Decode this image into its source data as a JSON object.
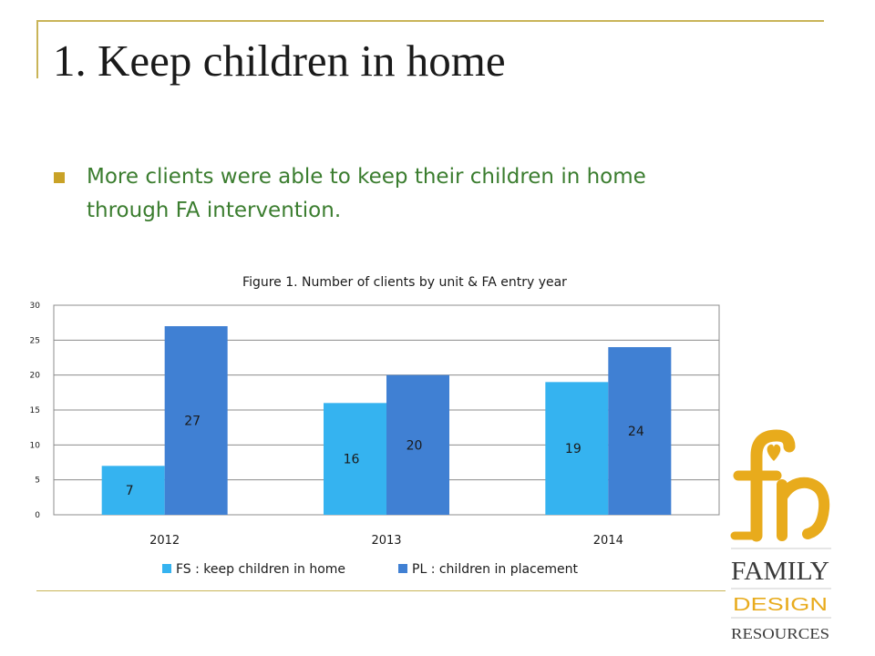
{
  "slide": {
    "title": "1. Keep children in home",
    "bullet": "More clients were able to keep their children in home through FA intervention."
  },
  "chart_data": {
    "type": "bar",
    "title": "Figure 1. Number of clients by unit &  FA entry year",
    "categories": [
      "2012",
      "2013",
      "2014"
    ],
    "series": [
      {
        "name": "FS : keep children in home",
        "values": [
          7,
          16,
          19
        ],
        "color": "#35b3f0"
      },
      {
        "name": "PL : children in placement",
        "values": [
          27,
          20,
          24
        ],
        "color": "#4080d3"
      }
    ],
    "ylim": [
      0,
      30
    ],
    "yticks": [
      0,
      5,
      10,
      15,
      20,
      25,
      30
    ],
    "grid": true,
    "legend": "bottom"
  },
  "logo": {
    "line1": "FAMILY",
    "line2": "DESIGN",
    "line3": "RESOURCES",
    "colors": {
      "gold": "#e8ab1c",
      "dark": "#3a3a3a"
    }
  }
}
